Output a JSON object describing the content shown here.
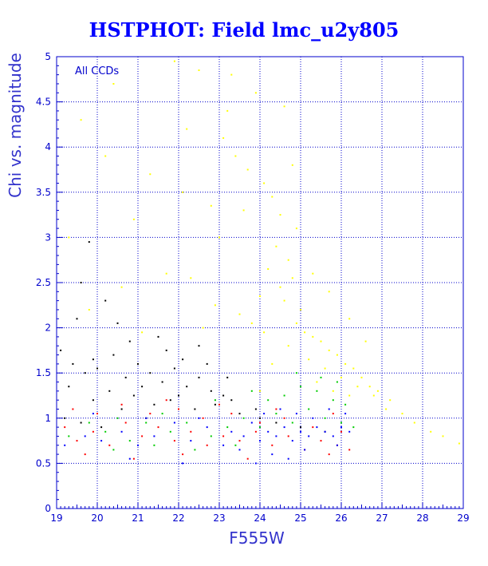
{
  "chart_data": {
    "type": "scatter",
    "title": "HSTPHOT: Field lmc_u2y805",
    "xlabel": "F555W",
    "ylabel": "Chi vs. magnitude",
    "annotation": "All CCDs",
    "xlim": [
      19,
      29
    ],
    "ylim": [
      0,
      5
    ],
    "x_ticks": [
      "19",
      "20",
      "21",
      "22",
      "23",
      "24",
      "25",
      "26",
      "27",
      "28",
      "29"
    ],
    "y_ticks": [
      "0",
      "0.5",
      "1",
      "1.5",
      "2",
      "2.5",
      "3",
      "3.5",
      "4",
      "4.5",
      "5"
    ],
    "grid": true,
    "legend": "none",
    "series": [
      {
        "color": "#ffff00",
        "points": [
          [
            19.6,
            4.3
          ],
          [
            20.4,
            4.7
          ],
          [
            21.9,
            4.95
          ],
          [
            22.5,
            4.85
          ],
          [
            23.3,
            4.8
          ],
          [
            23.9,
            4.6
          ],
          [
            24.6,
            4.45
          ],
          [
            23.1,
            4.1
          ],
          [
            23.4,
            3.9
          ],
          [
            23.7,
            3.75
          ],
          [
            24.1,
            3.6
          ],
          [
            24.3,
            3.45
          ],
          [
            23.6,
            3.3
          ],
          [
            24.5,
            3.25
          ],
          [
            20.2,
            3.9
          ],
          [
            21.3,
            3.7
          ],
          [
            22.1,
            3.5
          ],
          [
            22.8,
            3.35
          ],
          [
            24.9,
            3.1
          ],
          [
            23.0,
            3.0
          ],
          [
            24.4,
            2.9
          ],
          [
            24.7,
            2.75
          ],
          [
            24.2,
            2.65
          ],
          [
            24.8,
            2.55
          ],
          [
            24.5,
            2.45
          ],
          [
            24.0,
            2.35
          ],
          [
            24.6,
            2.3
          ],
          [
            25.0,
            2.2
          ],
          [
            24.9,
            2.05
          ],
          [
            25.1,
            1.95
          ],
          [
            25.3,
            1.9
          ],
          [
            25.5,
            1.85
          ],
          [
            25.7,
            1.75
          ],
          [
            25.9,
            1.7
          ],
          [
            26.1,
            1.6
          ],
          [
            26.3,
            1.55
          ],
          [
            26.5,
            1.45
          ],
          [
            26.7,
            1.35
          ],
          [
            26.9,
            1.3
          ],
          [
            27.2,
            1.2
          ],
          [
            27.5,
            1.05
          ],
          [
            27.8,
            0.95
          ],
          [
            28.2,
            0.85
          ],
          [
            28.5,
            0.8
          ],
          [
            28.9,
            0.72
          ],
          [
            19.8,
            2.2
          ],
          [
            20.6,
            2.45
          ],
          [
            21.7,
            2.6
          ],
          [
            22.3,
            2.55
          ],
          [
            22.9,
            2.25
          ],
          [
            23.5,
            2.15
          ],
          [
            24.1,
            1.95
          ],
          [
            24.7,
            1.8
          ],
          [
            25.2,
            1.65
          ],
          [
            25.6,
            1.55
          ],
          [
            26.0,
            1.45
          ],
          [
            26.4,
            1.35
          ],
          [
            26.8,
            1.25
          ],
          [
            27.1,
            1.1
          ],
          [
            21.1,
            1.95
          ],
          [
            22.6,
            2.0
          ],
          [
            23.8,
            2.05
          ],
          [
            24.3,
            1.6
          ],
          [
            25.4,
            1.4
          ],
          [
            25.8,
            1.3
          ],
          [
            26.2,
            1.25
          ],
          [
            24.0,
            1.3
          ],
          [
            25.0,
            1.35
          ],
          [
            19.3,
            3.0
          ],
          [
            20.9,
            3.2
          ],
          [
            22.2,
            4.2
          ],
          [
            23.2,
            4.4
          ],
          [
            24.8,
            3.8
          ],
          [
            25.3,
            2.6
          ],
          [
            25.7,
            2.4
          ],
          [
            26.2,
            2.1
          ],
          [
            26.6,
            1.85
          ]
        ]
      },
      {
        "color": "#000000",
        "points": [
          [
            19.1,
            1.75
          ],
          [
            19.4,
            1.6
          ],
          [
            19.7,
            1.5
          ],
          [
            20.0,
            1.55
          ],
          [
            20.4,
            1.7
          ],
          [
            20.7,
            1.45
          ],
          [
            21.0,
            1.6
          ],
          [
            21.3,
            1.5
          ],
          [
            21.6,
            1.4
          ],
          [
            21.9,
            1.55
          ],
          [
            22.2,
            1.35
          ],
          [
            22.5,
            1.45
          ],
          [
            22.8,
            1.3
          ],
          [
            23.1,
            1.25
          ],
          [
            19.3,
            1.35
          ],
          [
            19.9,
            1.2
          ],
          [
            20.3,
            1.3
          ],
          [
            20.9,
            1.25
          ],
          [
            21.4,
            1.15
          ],
          [
            21.8,
            1.2
          ],
          [
            22.4,
            1.1
          ],
          [
            22.9,
            1.15
          ],
          [
            23.5,
            1.05
          ],
          [
            24.0,
            1.0
          ],
          [
            19.5,
            2.1
          ],
          [
            20.5,
            2.05
          ],
          [
            21.5,
            1.9
          ],
          [
            22.5,
            1.8
          ],
          [
            19.6,
            2.5
          ],
          [
            20.2,
            2.3
          ],
          [
            19.8,
            2.95
          ],
          [
            20.6,
            1.1
          ],
          [
            21.2,
            1.0
          ],
          [
            19.2,
            1.0
          ],
          [
            19.6,
            0.95
          ],
          [
            20.1,
            0.9
          ],
          [
            23.3,
            1.2
          ],
          [
            23.9,
            1.1
          ],
          [
            24.4,
            0.95
          ],
          [
            25.0,
            0.9
          ],
          [
            25.6,
            0.85
          ],
          [
            20.8,
            1.85
          ],
          [
            21.7,
            1.75
          ],
          [
            22.1,
            1.65
          ],
          [
            22.7,
            1.6
          ],
          [
            23.2,
            1.45
          ],
          [
            19.9,
            1.65
          ],
          [
            21.1,
            1.35
          ],
          [
            22.0,
            1.25
          ]
        ]
      },
      {
        "color": "#ff0000",
        "points": [
          [
            19.2,
            0.9
          ],
          [
            19.5,
            0.75
          ],
          [
            19.9,
            0.85
          ],
          [
            20.3,
            0.7
          ],
          [
            20.7,
            0.95
          ],
          [
            21.1,
            0.8
          ],
          [
            21.5,
            0.9
          ],
          [
            21.9,
            0.75
          ],
          [
            22.3,
            0.85
          ],
          [
            22.7,
            0.7
          ],
          [
            23.1,
            0.8
          ],
          [
            23.5,
            0.75
          ],
          [
            23.9,
            0.85
          ],
          [
            24.3,
            0.7
          ],
          [
            24.7,
            0.8
          ],
          [
            25.1,
            0.65
          ],
          [
            25.5,
            0.75
          ],
          [
            25.9,
            0.7
          ],
          [
            26.2,
            0.65
          ],
          [
            19.4,
            1.1
          ],
          [
            20.0,
            1.05
          ],
          [
            20.6,
            1.15
          ],
          [
            21.3,
            1.05
          ],
          [
            22.0,
            1.1
          ],
          [
            22.6,
            1.0
          ],
          [
            23.3,
            1.05
          ],
          [
            24.0,
            0.95
          ],
          [
            24.6,
            1.0
          ],
          [
            25.3,
            0.9
          ],
          [
            26.0,
            0.85
          ],
          [
            19.7,
            0.6
          ],
          [
            20.9,
            0.55
          ],
          [
            22.1,
            0.6
          ],
          [
            23.7,
            0.55
          ],
          [
            25.7,
            0.6
          ],
          [
            21.7,
            1.2
          ],
          [
            23.0,
            1.15
          ],
          [
            24.4,
            1.1
          ],
          [
            25.8,
            1.05
          ]
        ]
      },
      {
        "color": "#00cc00",
        "points": [
          [
            19.3,
            0.8
          ],
          [
            19.8,
            0.95
          ],
          [
            20.2,
            0.85
          ],
          [
            20.8,
            0.75
          ],
          [
            21.2,
            0.95
          ],
          [
            21.8,
            0.85
          ],
          [
            22.2,
            0.95
          ],
          [
            22.8,
            0.8
          ],
          [
            23.2,
            0.9
          ],
          [
            23.6,
            1.0
          ],
          [
            24.0,
            0.9
          ],
          [
            24.4,
            1.05
          ],
          [
            24.8,
            0.95
          ],
          [
            25.2,
            1.1
          ],
          [
            25.6,
            1.0
          ],
          [
            26.0,
            0.95
          ],
          [
            26.3,
            0.9
          ],
          [
            24.6,
            1.25
          ],
          [
            25.0,
            1.35
          ],
          [
            25.4,
            1.3
          ],
          [
            25.8,
            1.2
          ],
          [
            26.1,
            1.15
          ],
          [
            24.2,
            1.2
          ],
          [
            23.4,
            0.7
          ],
          [
            22.4,
            0.65
          ],
          [
            21.4,
            0.7
          ],
          [
            20.4,
            0.65
          ],
          [
            25.5,
            1.45
          ],
          [
            25.9,
            1.4
          ],
          [
            24.9,
            1.5
          ],
          [
            23.8,
            1.3
          ],
          [
            22.9,
            1.2
          ],
          [
            21.6,
            1.05
          ],
          [
            20.5,
            1.0
          ]
        ]
      },
      {
        "color": "#0000ff",
        "points": [
          [
            19.2,
            0.7
          ],
          [
            19.7,
            0.8
          ],
          [
            20.1,
            0.75
          ],
          [
            20.6,
            0.85
          ],
          [
            21.0,
            0.7
          ],
          [
            21.4,
            0.8
          ],
          [
            21.9,
            0.95
          ],
          [
            22.3,
            0.75
          ],
          [
            22.7,
            0.9
          ],
          [
            23.1,
            0.7
          ],
          [
            23.3,
            0.85
          ],
          [
            23.6,
            0.8
          ],
          [
            23.8,
            0.95
          ],
          [
            24.0,
            0.75
          ],
          [
            24.2,
            0.85
          ],
          [
            24.4,
            0.8
          ],
          [
            24.6,
            0.9
          ],
          [
            24.8,
            0.75
          ],
          [
            25.0,
            0.85
          ],
          [
            25.2,
            0.8
          ],
          [
            25.4,
            0.9
          ],
          [
            25.6,
            0.85
          ],
          [
            25.8,
            0.8
          ],
          [
            26.0,
            0.9
          ],
          [
            26.2,
            0.85
          ],
          [
            24.1,
            1.05
          ],
          [
            24.5,
            1.1
          ],
          [
            24.9,
            1.05
          ],
          [
            25.3,
            1.0
          ],
          [
            25.7,
            1.1
          ],
          [
            26.1,
            1.05
          ],
          [
            23.5,
            0.65
          ],
          [
            24.3,
            0.6
          ],
          [
            25.1,
            0.65
          ],
          [
            25.9,
            0.7
          ],
          [
            22.5,
            1.0
          ],
          [
            21.2,
            1.0
          ],
          [
            19.9,
            1.05
          ],
          [
            20.8,
            0.55
          ],
          [
            22.1,
            0.5
          ],
          [
            23.9,
            0.5
          ],
          [
            24.7,
            0.55
          ]
        ]
      }
    ]
  }
}
